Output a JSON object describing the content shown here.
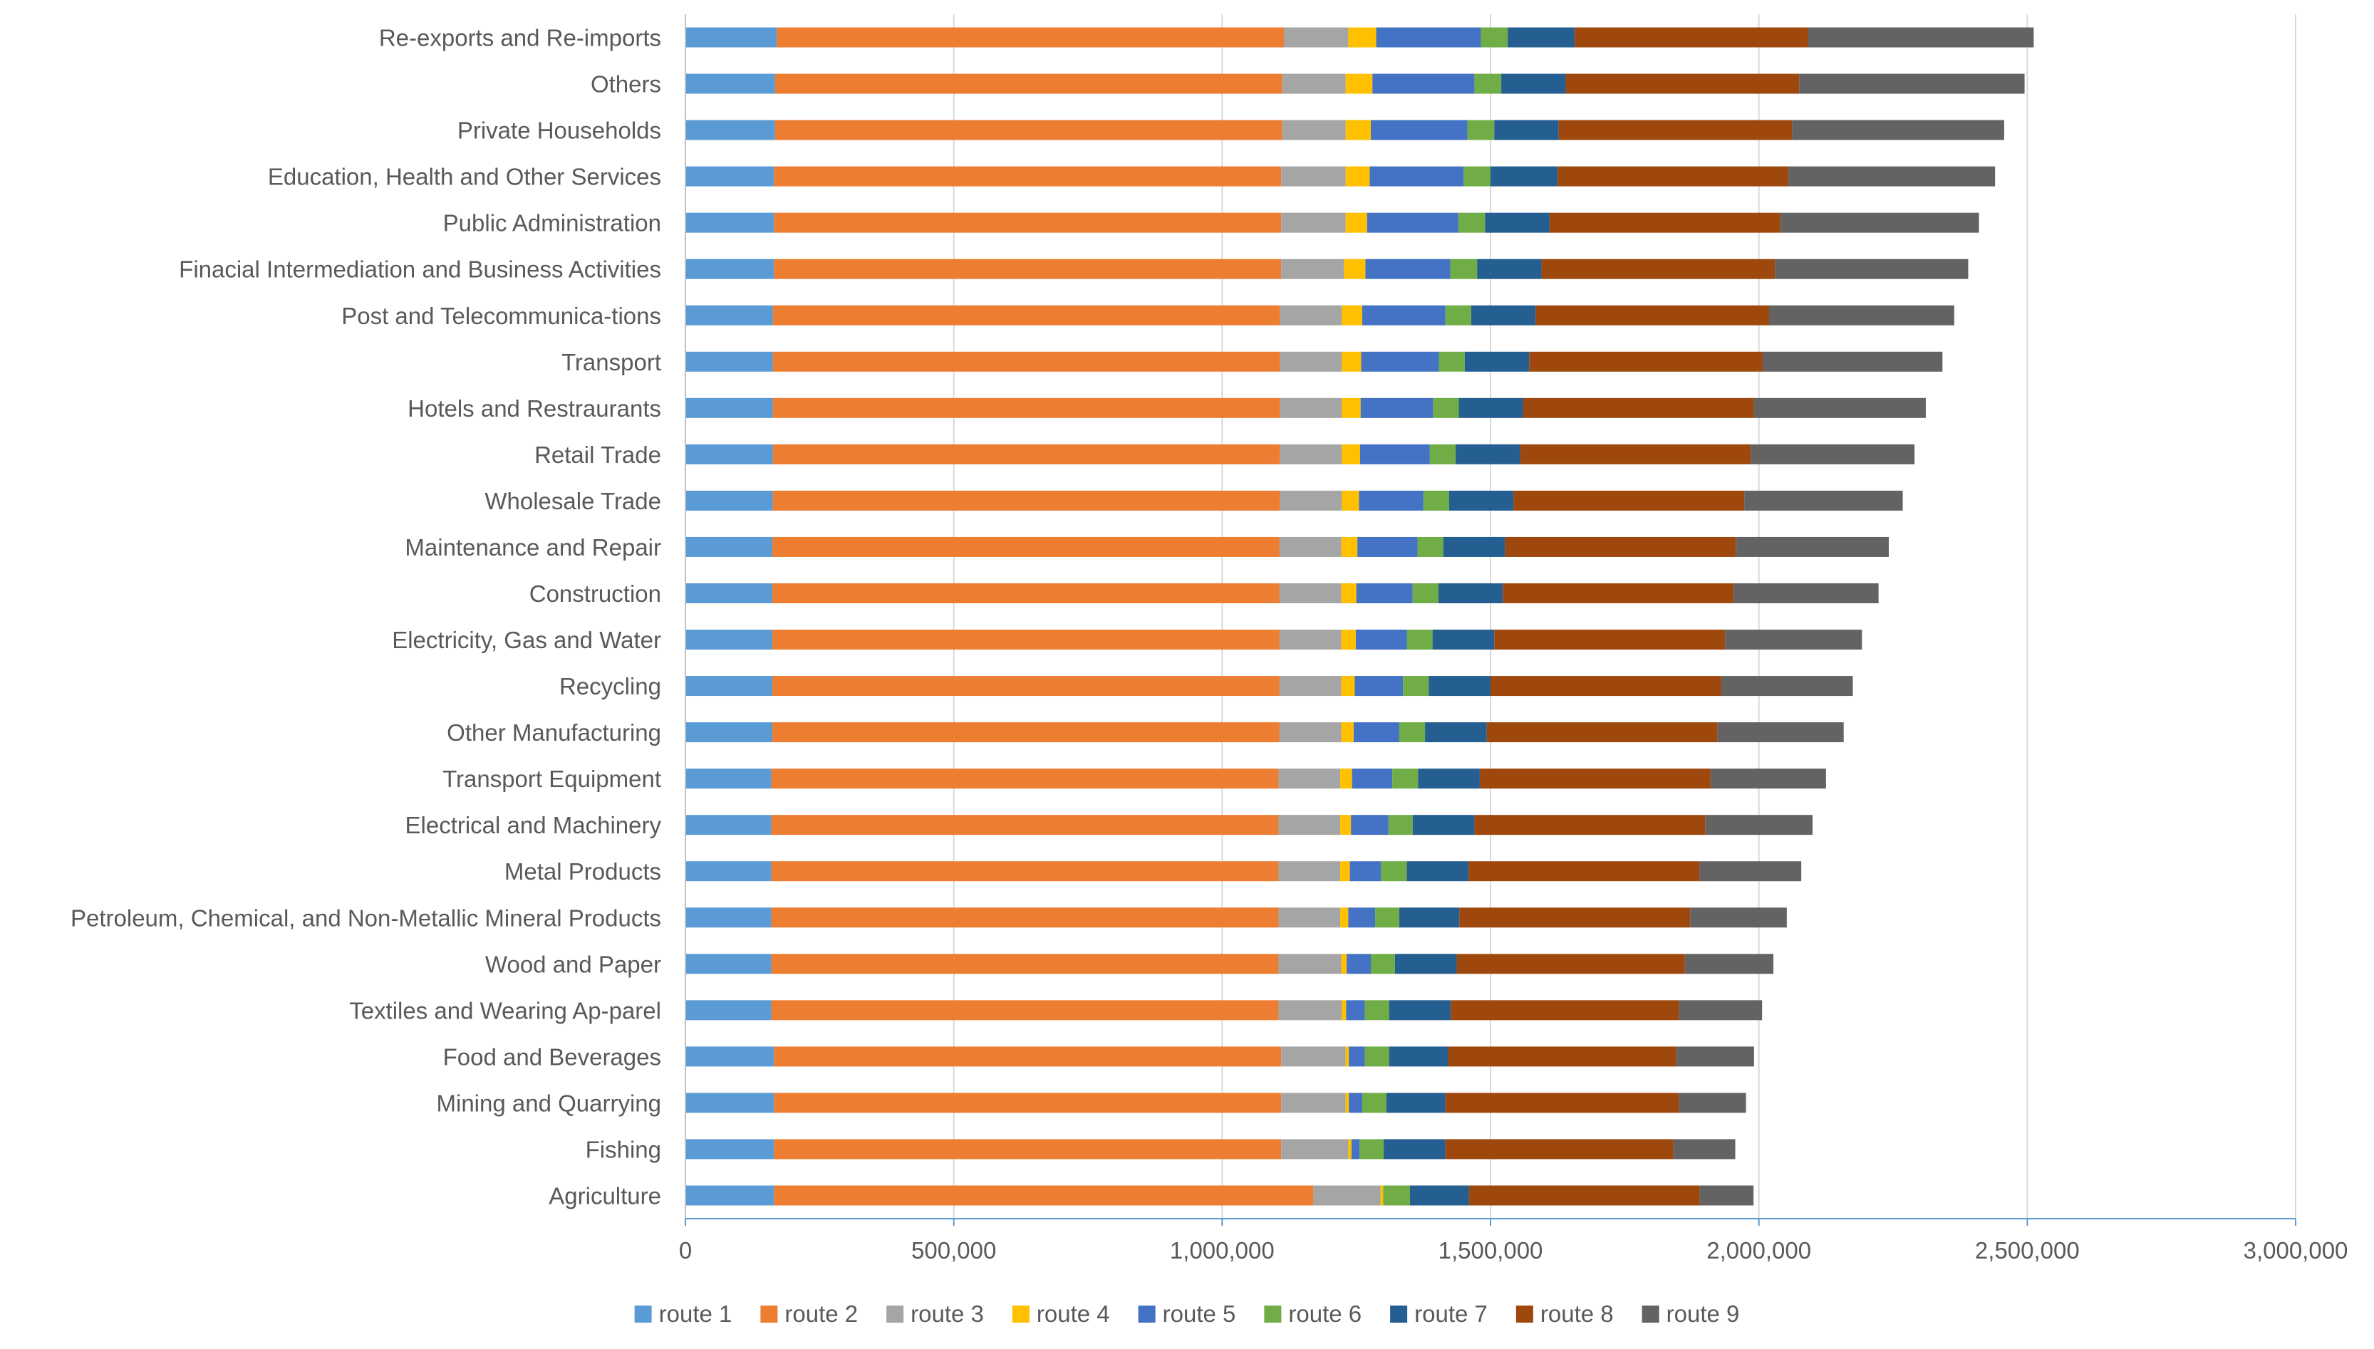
{
  "chart_data": {
    "type": "bar",
    "orientation": "horizontal",
    "stacked": true,
    "title": "",
    "xlabel": "",
    "ylabel": "",
    "xlim": [
      0,
      3000000
    ],
    "xticks": [
      0,
      500000,
      1000000,
      1500000,
      2000000,
      2500000,
      3000000
    ],
    "xtick_labels": [
      "0",
      "500,000",
      "1,000,000",
      "1,500,000",
      "2,000,000",
      "2,500,000",
      "3,000,000"
    ],
    "grid": "vertical",
    "legend_position": "bottom",
    "categories": [
      "Agriculture",
      "Fishing",
      "Mining and Quarrying",
      "Food and Beverages",
      "Textiles and Wearing Ap-parel",
      "Wood and Paper",
      "Petroleum, Chemical, and Non-Metallic Mineral Products",
      "Metal Products",
      "Electrical and Machinery",
      "Transport Equipment",
      "Other Manufacturing",
      "Recycling",
      "Electricity, Gas and Water",
      "Construction",
      "Maintenance and Repair",
      "Wholesale Trade",
      "Retail Trade",
      "Hotels and Restraurants",
      "Transport",
      "Post and Telecommunica-tions",
      "Finacial Intermediation and Business Activities",
      "Public Administration",
      "Education, Health and Other Services",
      "Private Households",
      "Others",
      "Re-exports and Re-imports"
    ],
    "series": [
      {
        "name": "route 1",
        "color": "#5B9BD5",
        "values": [
          165000,
          165000,
          165000,
          165000,
          160000,
          160000,
          160000,
          160000,
          160000,
          160000,
          162000,
          162000,
          162000,
          162000,
          162000,
          163000,
          163000,
          163000,
          163000,
          163000,
          165000,
          165000,
          165000,
          167000,
          167000,
          170000
        ]
      },
      {
        "name": "route 2",
        "color": "#ED7D31",
        "values": [
          1005000,
          945000,
          945000,
          945000,
          945000,
          945000,
          945000,
          945000,
          945000,
          945000,
          945000,
          945000,
          945000,
          945000,
          945000,
          945000,
          945000,
          945000,
          945000,
          945000,
          945000,
          945000,
          945000,
          945000,
          945000,
          945000
        ]
      },
      {
        "name": "route 3",
        "color": "#A5A5A5",
        "values": [
          125000,
          125000,
          120000,
          120000,
          118000,
          117000,
          115000,
          115000,
          115000,
          115000,
          115000,
          115000,
          115000,
          115000,
          115000,
          115000,
          115000,
          115000,
          115000,
          115000,
          117000,
          120000,
          120000,
          118000,
          118000,
          120000
        ]
      },
      {
        "name": "route 4",
        "color": "#FFC000",
        "values": [
          5000,
          6000,
          6000,
          6000,
          8000,
          10000,
          15000,
          18000,
          20000,
          22000,
          23000,
          25000,
          27000,
          28000,
          30000,
          32000,
          34000,
          35000,
          36000,
          38000,
          40000,
          40000,
          45000,
          47000,
          50000,
          52000
        ]
      },
      {
        "name": "route 5",
        "color": "#4472C4",
        "values": [
          0,
          15000,
          25000,
          30000,
          35000,
          45000,
          50000,
          58000,
          70000,
          75000,
          85000,
          90000,
          95000,
          105000,
          112000,
          120000,
          130000,
          135000,
          145000,
          155000,
          158000,
          170000,
          175000,
          180000,
          190000,
          195000
        ]
      },
      {
        "name": "route 6",
        "color": "#70AD47",
        "values": [
          50000,
          45000,
          45000,
          45000,
          45000,
          45000,
          45000,
          48000,
          45000,
          48000,
          48000,
          48000,
          48000,
          48000,
          48000,
          48000,
          48000,
          48000,
          48000,
          48000,
          50000,
          50000,
          50000,
          50000,
          50000,
          50000
        ]
      },
      {
        "name": "route 7",
        "color": "#255E91",
        "values": [
          110000,
          115000,
          110000,
          110000,
          115000,
          115000,
          112000,
          115000,
          115000,
          115000,
          115000,
          115000,
          115000,
          120000,
          115000,
          120000,
          120000,
          120000,
          120000,
          120000,
          120000,
          120000,
          125000,
          120000,
          120000,
          125000
        ]
      },
      {
        "name": "route 8",
        "color": "#9E480E",
        "values": [
          430000,
          425000,
          435000,
          425000,
          425000,
          425000,
          430000,
          430000,
          430000,
          430000,
          430000,
          430000,
          430000,
          430000,
          430000,
          430000,
          430000,
          430000,
          435000,
          435000,
          435000,
          430000,
          430000,
          435000,
          435000,
          435000
        ]
      },
      {
        "name": "route 9",
        "color": "#636363",
        "values": [
          100000,
          115000,
          125000,
          145000,
          155000,
          165000,
          180000,
          190000,
          200000,
          215000,
          235000,
          245000,
          255000,
          270000,
          285000,
          295000,
          305000,
          320000,
          335000,
          345000,
          360000,
          370000,
          385000,
          395000,
          420000,
          420000
        ]
      }
    ]
  }
}
